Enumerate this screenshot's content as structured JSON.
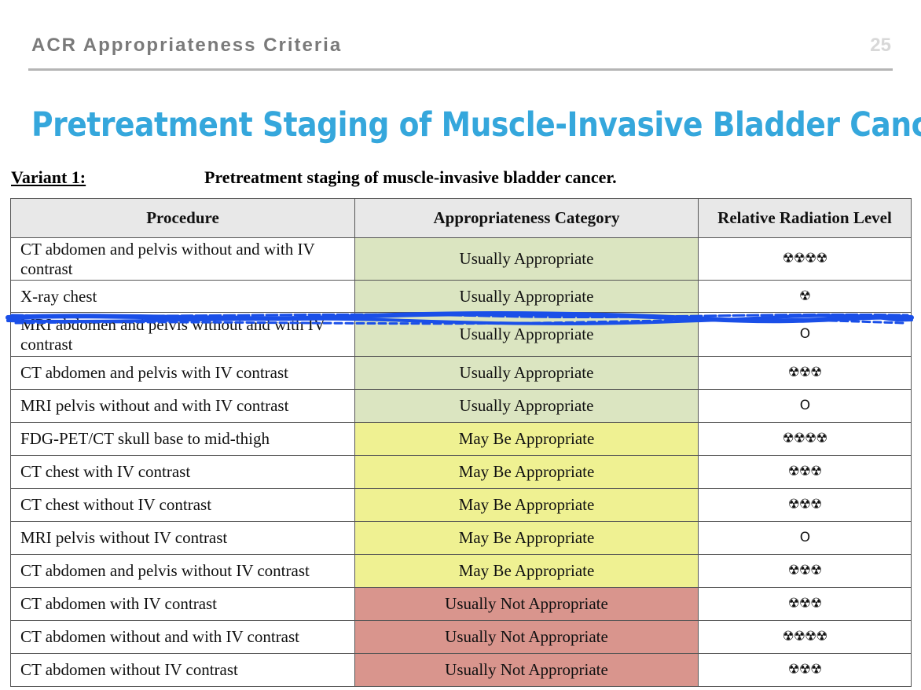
{
  "header": {
    "title": "ACR Appropriateness Criteria",
    "page_number": "25"
  },
  "title": "Pretreatment Staging of Muscle-Invasive Bladder Cancer",
  "variant": {
    "label": "Variant 1:",
    "description": "Pretreatment staging of muscle-invasive bladder cancer."
  },
  "table": {
    "headers": [
      "Procedure",
      "Appropriateness Category",
      "Relative Radiation Level"
    ],
    "rows": [
      {
        "procedure": "CT abdomen and pelvis without and with IV contrast",
        "category": "Usually Appropriate",
        "radiation": "☢☢☢☢"
      },
      {
        "procedure": "X-ray chest",
        "category": "Usually Appropriate",
        "radiation": "☢"
      },
      {
        "procedure": "MRI abdomen and pelvis without and with IV contrast",
        "category": "Usually Appropriate",
        "radiation": "O"
      },
      {
        "procedure": "CT abdomen and pelvis with IV contrast",
        "category": "Usually Appropriate",
        "radiation": "☢☢☢"
      },
      {
        "procedure": "MRI pelvis without and with IV contrast",
        "category": "Usually Appropriate",
        "radiation": "O"
      },
      {
        "procedure": "FDG-PET/CT skull base to mid-thigh",
        "category": "May Be Appropriate",
        "radiation": "☢☢☢☢"
      },
      {
        "procedure": "CT chest with IV contrast",
        "category": "May Be Appropriate",
        "radiation": "☢☢☢"
      },
      {
        "procedure": "CT chest without IV contrast",
        "category": "May Be Appropriate",
        "radiation": "☢☢☢"
      },
      {
        "procedure": "MRI pelvis without IV contrast",
        "category": "May Be Appropriate",
        "radiation": "O"
      },
      {
        "procedure": "CT abdomen and pelvis without IV contrast",
        "category": "May Be Appropriate",
        "radiation": "☢☢☢"
      },
      {
        "procedure": "CT abdomen with IV contrast",
        "category": "Usually Not Appropriate",
        "radiation": "☢☢☢"
      },
      {
        "procedure": "CT abdomen without and with IV contrast",
        "category": "Usually Not Appropriate",
        "radiation": "☢☢☢☢"
      },
      {
        "procedure": "CT abdomen without IV contrast",
        "category": "Usually Not Appropriate",
        "radiation": "☢☢☢"
      }
    ]
  },
  "colors": {
    "title": "#35a7dc",
    "usually_appropriate": "#dbe5c1",
    "may_be_appropriate": "#eff192",
    "usually_not_appropriate": "#d9958d",
    "scribble": "#1a4fe8"
  }
}
